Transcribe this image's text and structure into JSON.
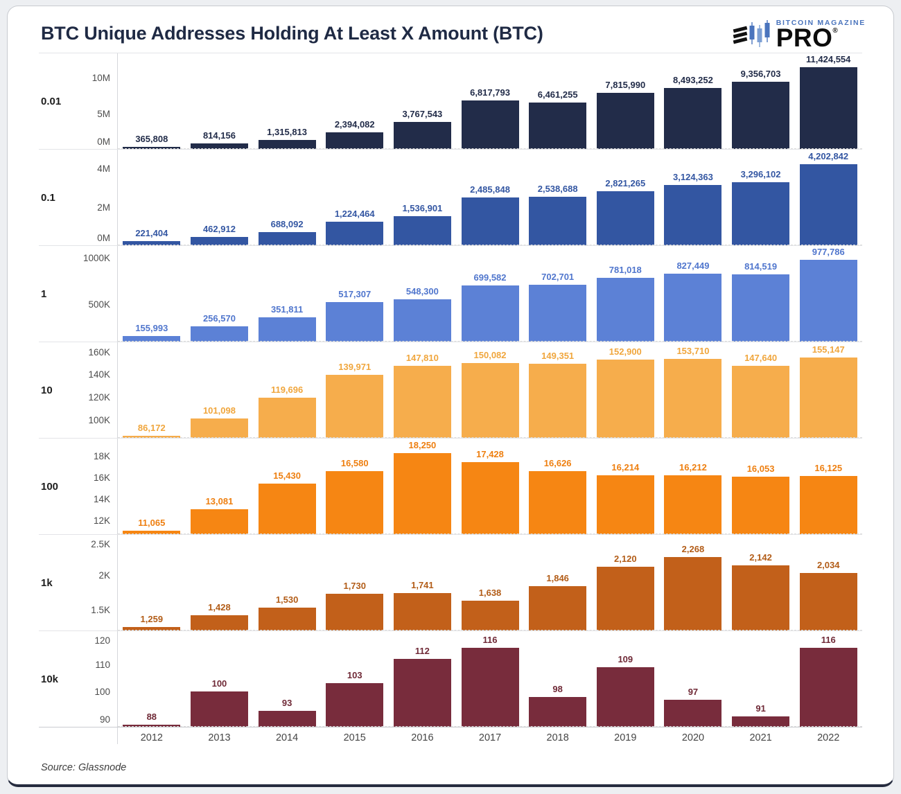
{
  "header": {
    "title": "BTC Unique Addresses Holding At Least X Amount (BTC)",
    "logo": {
      "brand": "BITCOIN MAGAZINE",
      "product": "PRO",
      "registered": "®"
    }
  },
  "footer": {
    "source": "Source: Glassnode"
  },
  "chart_data": {
    "type": "bar",
    "layout": "small_multiples_rows",
    "title": "BTC Unique Addresses Holding At Least X Amount (BTC)",
    "source": "Source: Glassnode",
    "x_categories": [
      "2012",
      "2013",
      "2014",
      "2015",
      "2016",
      "2017",
      "2018",
      "2019",
      "2020",
      "2021",
      "2022"
    ],
    "rows": [
      {
        "threshold": "0.01",
        "bar_color": "#222c49",
        "label_color": "#222c49",
        "ylim": [
          0,
          13300000
        ],
        "yticks": [
          {
            "label": "0M",
            "value": 0
          },
          {
            "label": "5M",
            "value": 5000000
          },
          {
            "label": "10M",
            "value": 10000000
          }
        ],
        "values": [
          365808,
          814156,
          1315813,
          2394082,
          3767543,
          6817793,
          6461255,
          7815990,
          8493252,
          9356703,
          11424554
        ]
      },
      {
        "threshold": "0.1",
        "bar_color": "#3356a2",
        "label_color": "#3356a2",
        "ylim": [
          0,
          4950000
        ],
        "yticks": [
          {
            "label": "0M",
            "value": 0
          },
          {
            "label": "2M",
            "value": 2000000
          },
          {
            "label": "4M",
            "value": 4000000
          }
        ],
        "values": [
          221404,
          462912,
          688092,
          1224464,
          1536901,
          2485848,
          2538688,
          2821265,
          3124363,
          3296102,
          4202842
        ]
      },
      {
        "threshold": "1",
        "bar_color": "#5c81d6",
        "label_color": "#5076cd",
        "ylim": [
          90000,
          1120000
        ],
        "yticks": [
          {
            "label": "500K",
            "value": 500000
          },
          {
            "label": "1000K",
            "value": 1000000
          }
        ],
        "values": [
          155993,
          256570,
          351811,
          517307,
          548300,
          699582,
          702701,
          781018,
          827449,
          814519,
          977786
        ]
      },
      {
        "threshold": "10",
        "bar_color": "#f6ad4c",
        "label_color": "#f0a63d",
        "ylim": [
          84000,
          168000
        ],
        "yticks": [
          {
            "label": "100K",
            "value": 100000
          },
          {
            "label": "120K",
            "value": 120000
          },
          {
            "label": "140K",
            "value": 140000
          },
          {
            "label": "160K",
            "value": 160000
          }
        ],
        "values": [
          86172,
          101098,
          119696,
          139971,
          147810,
          150082,
          149351,
          152900,
          153710,
          147640,
          155147
        ]
      },
      {
        "threshold": "100",
        "bar_color": "#f68613",
        "label_color": "#ee7f10",
        "ylim": [
          10700,
          19600
        ],
        "yticks": [
          {
            "label": "12K",
            "value": 12000
          },
          {
            "label": "14K",
            "value": 14000
          },
          {
            "label": "16K",
            "value": 16000
          },
          {
            "label": "18K",
            "value": 18000
          }
        ],
        "values": [
          11065,
          13081,
          15430,
          16580,
          18250,
          17428,
          16626,
          16214,
          16212,
          16053,
          16125
        ]
      },
      {
        "threshold": "1k",
        "bar_color": "#c2601a",
        "label_color": "#b25c17",
        "ylim": [
          1200,
          2580
        ],
        "yticks": [
          {
            "label": "1.5K",
            "value": 1500
          },
          {
            "label": "2K",
            "value": 2000
          },
          {
            "label": "2.5K",
            "value": 2500
          }
        ],
        "values": [
          1259,
          1428,
          1530,
          1730,
          1741,
          1638,
          1846,
          2120,
          2268,
          2142,
          2034
        ]
      },
      {
        "threshold": "10k",
        "bar_color": "#782c3c",
        "label_color": "#6f2936",
        "ylim": [
          87,
          122
        ],
        "yticks": [
          {
            "label": "90",
            "value": 90
          },
          {
            "label": "100",
            "value": 100
          },
          {
            "label": "110",
            "value": 110
          },
          {
            "label": "120",
            "value": 120
          }
        ],
        "values": [
          88,
          100,
          93,
          103,
          112,
          116,
          98,
          109,
          97,
          91,
          116
        ]
      }
    ]
  }
}
